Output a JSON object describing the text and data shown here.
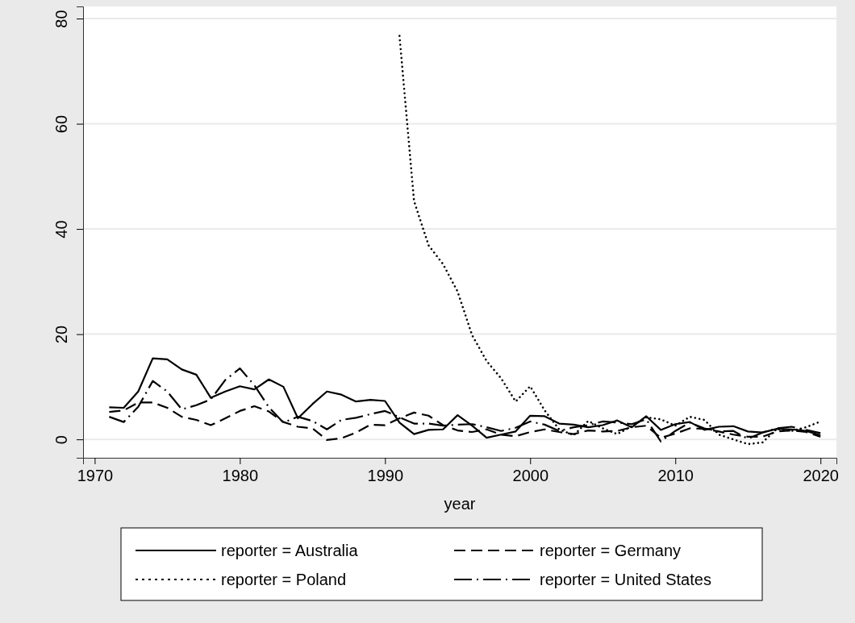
{
  "chart_data": {
    "type": "line",
    "xlabel": "year",
    "xlim": [
      1969.2,
      2021.1
    ],
    "xticks": [
      1970,
      1980,
      1990,
      2000,
      2010,
      2020
    ],
    "ylim": [
      -3.5,
      82.3
    ],
    "yticks": [
      0,
      20,
      40,
      60,
      80
    ],
    "grid": "y",
    "legend": "bottom",
    "marker": "none",
    "series": [
      {
        "name": "reporter = Australia",
        "color": "#000000",
        "line_style": "solid",
        "x": [
          1971,
          1972,
          1973,
          1974,
          1975,
          1976,
          1977,
          1978,
          1979,
          1980,
          1981,
          1982,
          1983,
          1984,
          1985,
          1986,
          1987,
          1988,
          1989,
          1990,
          1991,
          1992,
          1993,
          1994,
          1995,
          1996,
          1997,
          1998,
          1999,
          2000,
          2001,
          2002,
          2003,
          2004,
          2005,
          2006,
          2007,
          2008,
          2009,
          2010,
          2011,
          2012,
          2013,
          2014,
          2015,
          2016,
          2017,
          2018,
          2019,
          2020
        ],
        "values": [
          6.1,
          6.0,
          9.1,
          15.4,
          15.2,
          13.3,
          12.3,
          7.9,
          9.1,
          10.1,
          9.5,
          11.4,
          10.0,
          4.0,
          6.7,
          9.1,
          8.5,
          7.2,
          7.5,
          7.3,
          3.2,
          1.0,
          1.8,
          1.9,
          4.6,
          2.6,
          0.3,
          0.9,
          1.5,
          4.5,
          4.4,
          3.0,
          2.8,
          2.3,
          2.7,
          3.6,
          2.3,
          4.4,
          1.8,
          2.9,
          3.3,
          1.8,
          2.4,
          2.5,
          1.5,
          1.3,
          2.0,
          1.9,
          1.6,
          0.8
        ]
      },
      {
        "name": "reporter = Germany",
        "color": "#000000",
        "line_style": "dashed",
        "x": [
          1971,
          1972,
          1973,
          1974,
          1975,
          1976,
          1977,
          1978,
          1979,
          1980,
          1981,
          1982,
          1983,
          1984,
          1985,
          1986,
          1987,
          1988,
          1989,
          1990,
          1991,
          1992,
          1993,
          1994,
          1995,
          1996,
          1997,
          1998,
          1999,
          2000,
          2001,
          2002,
          2003,
          2004,
          2005,
          2006,
          2007,
          2008,
          2009,
          2010,
          2011,
          2012,
          2013,
          2014,
          2015,
          2016,
          2017,
          2018,
          2019,
          2020
        ],
        "values": [
          5.2,
          5.5,
          7.0,
          7.0,
          6.0,
          4.3,
          3.7,
          2.7,
          4.0,
          5.4,
          6.3,
          5.3,
          3.3,
          2.4,
          2.1,
          -0.1,
          0.2,
          1.3,
          2.8,
          2.7,
          4.0,
          5.1,
          4.5,
          2.7,
          1.7,
          1.4,
          1.9,
          0.9,
          0.6,
          1.4,
          1.9,
          1.4,
          1.0,
          1.7,
          1.5,
          1.6,
          2.3,
          2.6,
          0.3,
          1.1,
          2.1,
          2.0,
          1.5,
          0.9,
          0.5,
          0.5,
          1.5,
          1.7,
          1.4,
          0.5
        ]
      },
      {
        "name": "reporter = Poland",
        "color": "#000000",
        "line_style": "dotted",
        "x": [
          1991,
          1992,
          1993,
          1994,
          1995,
          1996,
          1997,
          1998,
          1999,
          2000,
          2001,
          2002,
          2003,
          2004,
          2005,
          2006,
          2007,
          2008,
          2009,
          2010,
          2011,
          2012,
          2013,
          2014,
          2015,
          2016,
          2017,
          2018,
          2019,
          2020
        ],
        "values": [
          76.7,
          45.3,
          36.9,
          33.3,
          28.1,
          19.8,
          14.9,
          11.6,
          7.2,
          10.1,
          5.5,
          1.9,
          0.8,
          3.5,
          2.1,
          1.0,
          2.5,
          4.2,
          3.8,
          2.6,
          4.3,
          3.7,
          0.9,
          0.0,
          -0.9,
          -0.6,
          2.0,
          1.6,
          2.3,
          3.4
        ]
      },
      {
        "name": "reporter = United States",
        "color": "#000000",
        "line_style": "dashdot",
        "x": [
          1971,
          1972,
          1973,
          1974,
          1975,
          1976,
          1977,
          1978,
          1979,
          1980,
          1981,
          1982,
          1983,
          1984,
          1985,
          1986,
          1987,
          1988,
          1989,
          1990,
          1991,
          1992,
          1993,
          1994,
          1995,
          1996,
          1997,
          1998,
          1999,
          2000,
          2001,
          2002,
          2003,
          2004,
          2005,
          2006,
          2007,
          2008,
          2009,
          2010,
          2011,
          2012,
          2013,
          2014,
          2015,
          2016,
          2017,
          2018,
          2019,
          2020
        ],
        "values": [
          4.3,
          3.3,
          6.2,
          11.1,
          9.1,
          5.7,
          6.5,
          7.6,
          11.3,
          13.5,
          10.3,
          6.1,
          3.2,
          4.3,
          3.5,
          1.9,
          3.7,
          4.1,
          4.8,
          5.4,
          4.2,
          3.0,
          3.0,
          2.6,
          2.8,
          2.9,
          2.3,
          1.6,
          2.2,
          3.4,
          2.8,
          1.6,
          2.3,
          2.7,
          3.4,
          3.2,
          2.9,
          3.8,
          -0.4,
          1.6,
          3.2,
          2.1,
          1.5,
          1.6,
          0.1,
          1.3,
          2.1,
          2.4,
          1.8,
          1.2
        ]
      }
    ]
  }
}
